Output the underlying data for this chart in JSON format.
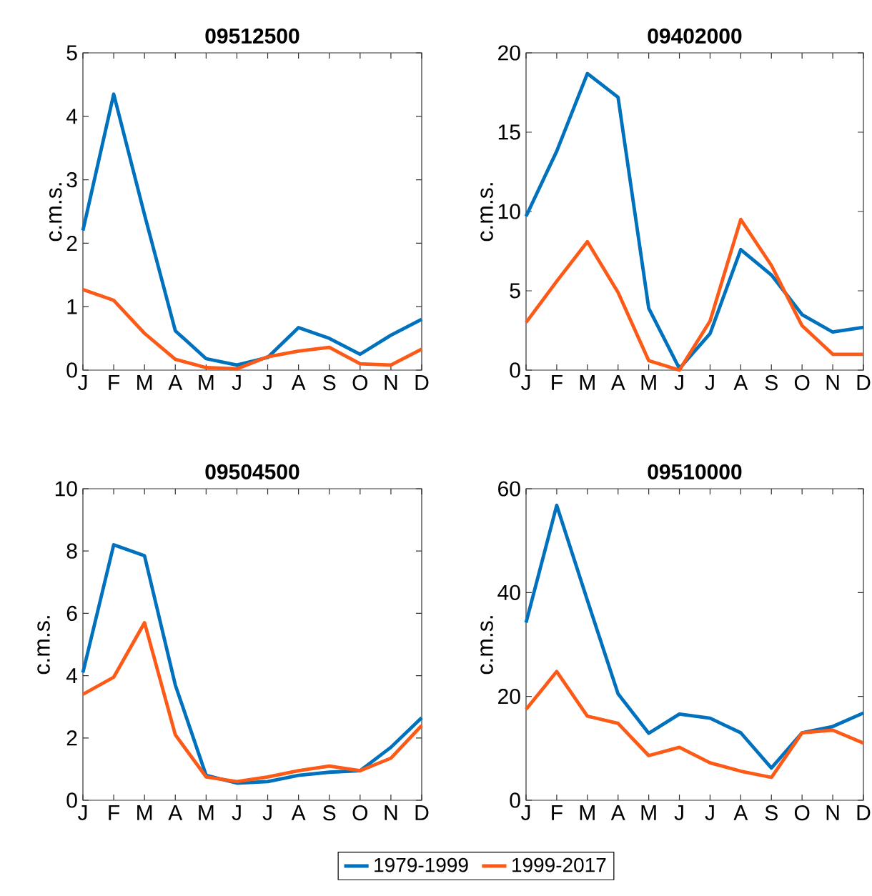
{
  "chart_data": [
    {
      "type": "line",
      "title": "09512500",
      "ylabel": "c.m.s.",
      "categories": [
        "J",
        "F",
        "M",
        "A",
        "M",
        "J",
        "J",
        "A",
        "S",
        "O",
        "N",
        "D"
      ],
      "ylim": [
        0,
        5
      ],
      "yticks": [
        0,
        1,
        2,
        3,
        4,
        5
      ],
      "series": [
        {
          "color": "#0072bd",
          "values": [
            2.2,
            4.35,
            2.45,
            0.62,
            0.18,
            0.08,
            0.2,
            0.67,
            0.5,
            0.25,
            0.55,
            0.8
          ]
        },
        {
          "color": "#fc5a16",
          "values": [
            1.27,
            1.1,
            0.58,
            0.17,
            0.04,
            0.02,
            0.21,
            0.3,
            0.36,
            0.1,
            0.08,
            0.33
          ]
        }
      ]
    },
    {
      "type": "line",
      "title": "09402000",
      "ylabel": "c.m.s.",
      "categories": [
        "J",
        "F",
        "M",
        "A",
        "M",
        "J",
        "J",
        "A",
        "S",
        "O",
        "N",
        "D"
      ],
      "ylim": [
        0,
        20
      ],
      "yticks": [
        0,
        5,
        10,
        15,
        20
      ],
      "series": [
        {
          "color": "#0072bd",
          "values": [
            9.7,
            13.8,
            18.7,
            17.2,
            3.9,
            0.1,
            2.3,
            7.6,
            6.0,
            3.5,
            2.4,
            2.7
          ]
        },
        {
          "color": "#fc5a16",
          "values": [
            3.0,
            5.6,
            8.1,
            4.9,
            0.6,
            0.0,
            3.1,
            9.5,
            6.6,
            2.8,
            1.0,
            1.0
          ]
        }
      ]
    },
    {
      "type": "line",
      "title": "09504500",
      "ylabel": "c.m.s.",
      "categories": [
        "J",
        "F",
        "M",
        "A",
        "M",
        "J",
        "J",
        "A",
        "S",
        "O",
        "N",
        "D"
      ],
      "ylim": [
        0,
        10
      ],
      "yticks": [
        0,
        2,
        4,
        6,
        8,
        10
      ],
      "series": [
        {
          "color": "#0072bd",
          "values": [
            4.1,
            8.2,
            7.85,
            3.7,
            0.8,
            0.55,
            0.6,
            0.8,
            0.9,
            0.95,
            1.7,
            2.65
          ]
        },
        {
          "color": "#fc5a16",
          "values": [
            3.4,
            3.95,
            5.7,
            2.1,
            0.75,
            0.6,
            0.75,
            0.95,
            1.1,
            0.95,
            1.35,
            2.4
          ]
        }
      ]
    },
    {
      "type": "line",
      "title": "09510000",
      "ylabel": "c.m.s.",
      "categories": [
        "J",
        "F",
        "M",
        "A",
        "M",
        "J",
        "J",
        "A",
        "S",
        "O",
        "N",
        "D"
      ],
      "ylim": [
        0,
        60
      ],
      "yticks": [
        0,
        20,
        40,
        60
      ],
      "legend": "bottom",
      "series": [
        {
          "name": "1979-1999",
          "color": "#0072bd",
          "values": [
            34.2,
            56.8,
            38.5,
            20.5,
            12.9,
            16.6,
            15.8,
            13.0,
            6.2,
            13.0,
            14.2,
            16.8
          ]
        },
        {
          "name": "1999-2017",
          "color": "#fc5a16",
          "values": [
            17.5,
            24.8,
            16.2,
            14.8,
            8.6,
            10.2,
            7.2,
            5.6,
            4.4,
            13.0,
            13.5,
            11.0
          ]
        }
      ]
    }
  ]
}
